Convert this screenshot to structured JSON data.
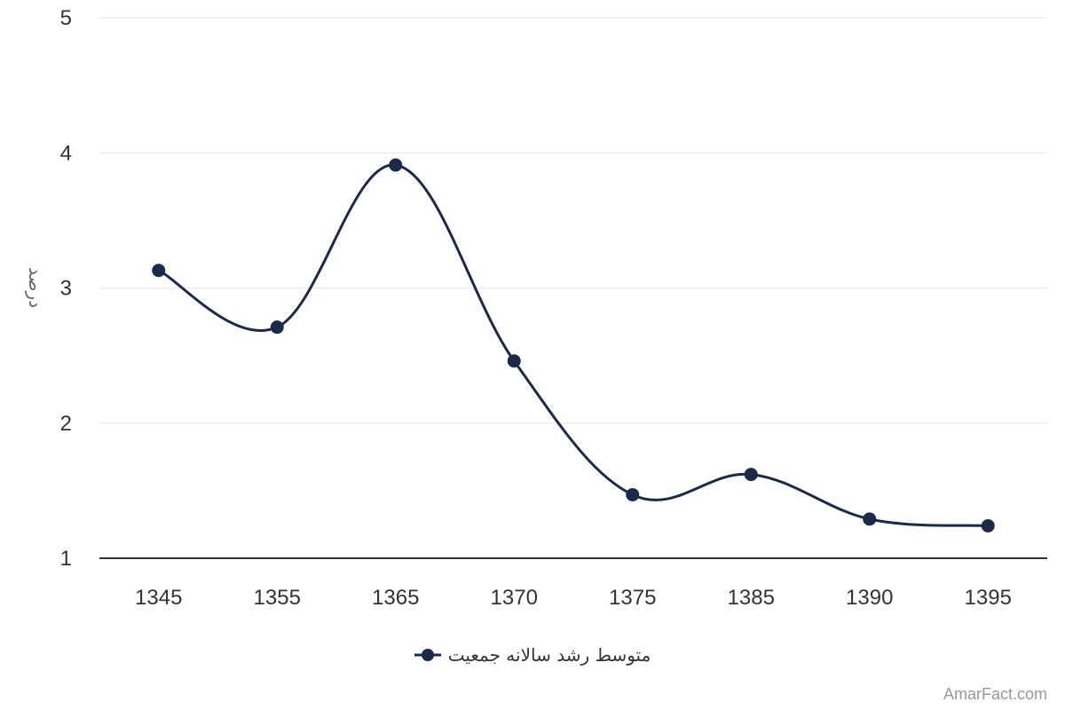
{
  "chart_data": {
    "type": "line",
    "categories": [
      "1345",
      "1355",
      "1365",
      "1370",
      "1375",
      "1385",
      "1390",
      "1395"
    ],
    "series": [
      {
        "name": "متوسط رشد سالانه جمعیت",
        "values": [
          3.13,
          2.71,
          3.91,
          2.46,
          1.47,
          1.62,
          1.29,
          1.24
        ]
      }
    ],
    "ylabel": "درصد",
    "xlabel": "",
    "ylim": [
      1,
      5
    ],
    "yticks": [
      "1",
      "2",
      "3",
      "4",
      "5"
    ],
    "grid": true,
    "legend_position": "bottom-center",
    "line_color": "#1b2a4a"
  },
  "credit": "AmarFact.com"
}
